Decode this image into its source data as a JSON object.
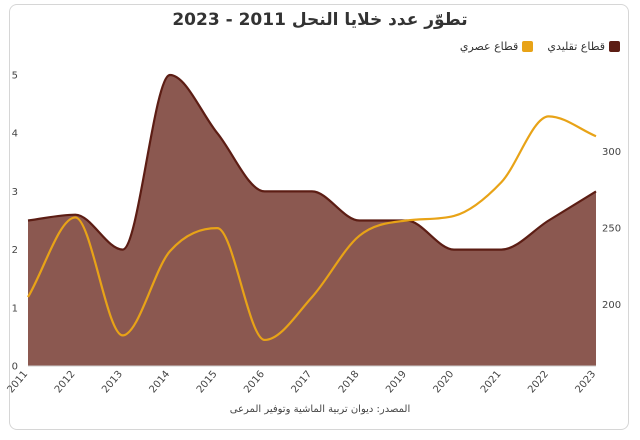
{
  "chart_data": {
    "type": "area",
    "title": "تطوّر عدد خلايا النحل 2011 - 2023",
    "source": "المصدر: ديوان تربية الماشية وتوفير المرعى",
    "categories": [
      "2011",
      "2012",
      "2013",
      "2014",
      "2015",
      "2016",
      "2017",
      "2018",
      "2019",
      "2020",
      "2021",
      "2022",
      "2023"
    ],
    "series": [
      {
        "name": "قطاع تقليدي",
        "type": "area",
        "axis": "left",
        "color": "#5c1d14",
        "fill": "#8b5850",
        "values": [
          2.5,
          2.6,
          2.0,
          5.0,
          4.0,
          3.0,
          3.0,
          2.5,
          2.5,
          2.0,
          2.0,
          2.5,
          3.0
        ]
      },
      {
        "name": "قطاع عصري",
        "type": "line",
        "axis": "right",
        "color": "#e8a317",
        "values": [
          205,
          257,
          180,
          235,
          250,
          177,
          205,
          245,
          255,
          258,
          280,
          323,
          310
        ]
      }
    ],
    "y_left": {
      "min": 0,
      "max": 5,
      "ticks": [
        "0",
        "1",
        "2",
        "3",
        "4",
        "5"
      ]
    },
    "y_right": {
      "min": 160,
      "max": 350,
      "ticks": [
        "200",
        "250",
        "300"
      ],
      "tick_values": [
        200,
        250,
        300
      ]
    },
    "grid": false,
    "legend_position": "top-right"
  }
}
